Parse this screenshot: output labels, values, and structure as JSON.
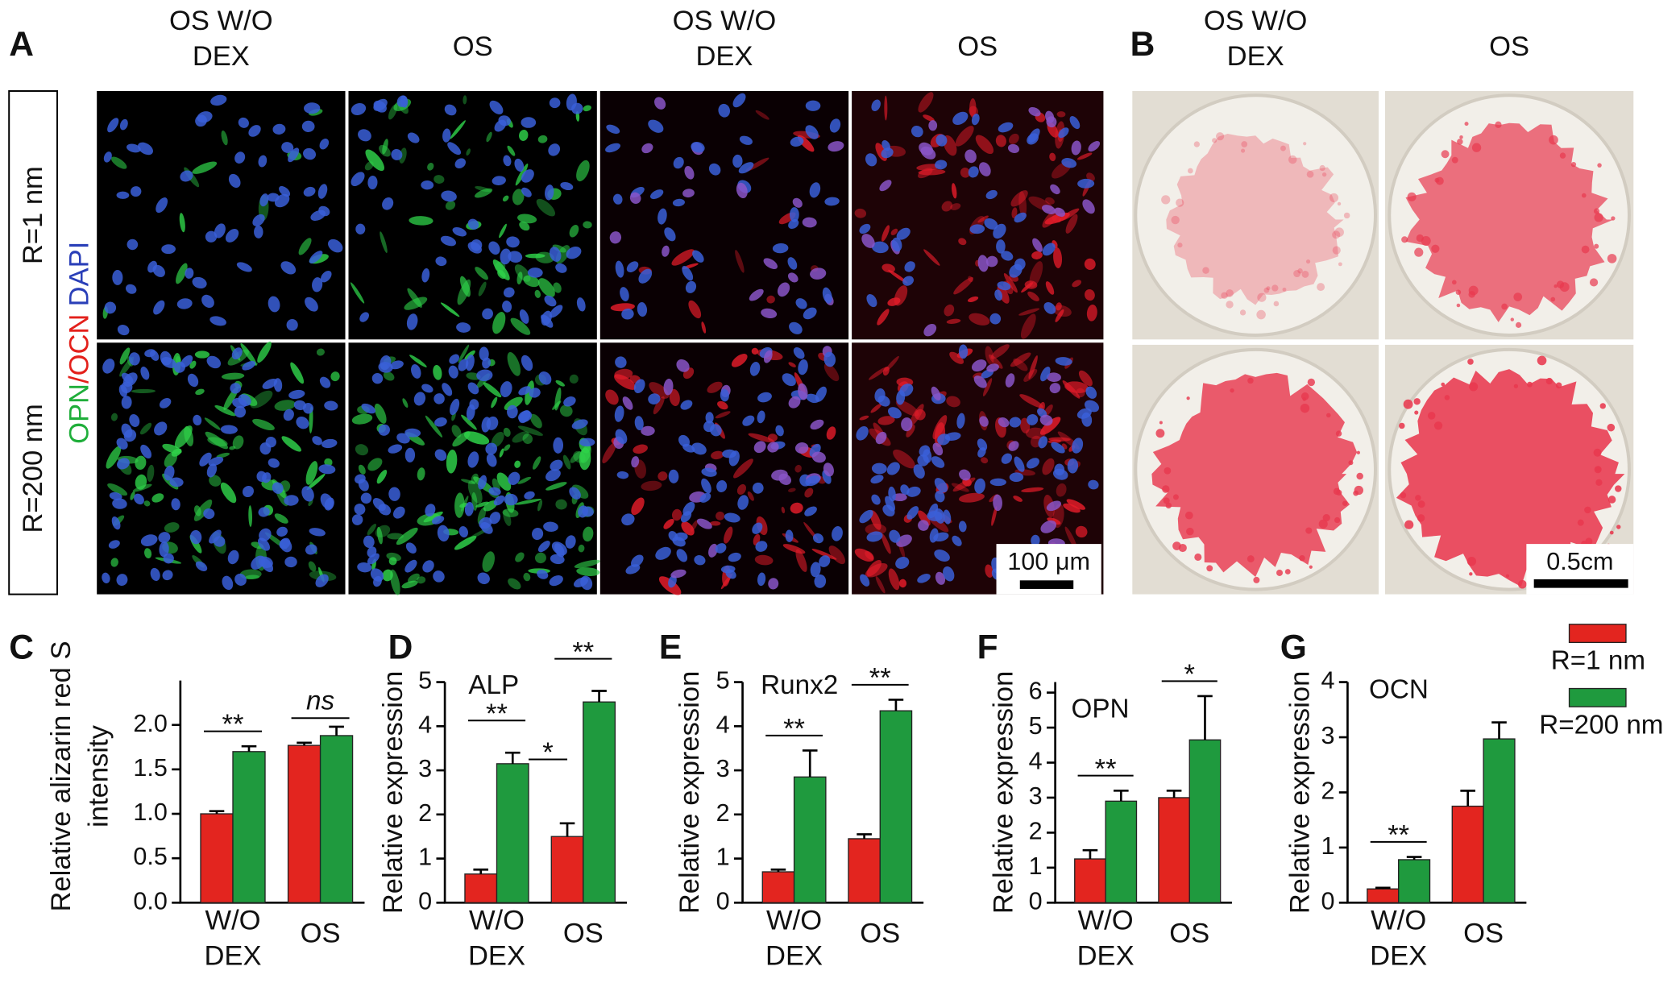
{
  "panel_a": {
    "label": "A",
    "columns": [
      "OS W/O\nDEX",
      "OS",
      "OS W/O\nDEX",
      "OS"
    ],
    "rows": [
      "R=1 nm",
      "R=200 nm"
    ],
    "stain": [
      {
        "text": "OPN",
        "color": "#1fae3a"
      },
      {
        "text": "/OCN",
        "color": "#e3201b"
      },
      {
        "text": "DAPI",
        "color": "#2a3fb8"
      }
    ],
    "scale_bar": "100 μm"
  },
  "panel_b": {
    "label": "B",
    "columns": [
      "OS W/O\nDEX",
      "OS"
    ],
    "scale_bar": "0.5cm"
  },
  "chart_data": [
    {
      "type": "bar",
      "label": "C",
      "ylabel": "Relative alizarin red S\nintensity",
      "categories": [
        "W/O\nDEX",
        "OS"
      ],
      "ylim": [
        0,
        2.5
      ],
      "yticks": [
        {
          "value": 0,
          "label": "0.0"
        },
        {
          "value": 0.5,
          "label": "0.5"
        },
        {
          "value": 1,
          "label": "1.0"
        },
        {
          "value": 1.5,
          "label": "1.5"
        },
        {
          "value": 2,
          "label": "2.0"
        }
      ],
      "series": [
        {
          "color": "#e3251f",
          "values": [
            1.0,
            1.77
          ],
          "errors": [
            0.03,
            0.03
          ]
        },
        {
          "color": "#1f9a3e",
          "values": [
            1.7,
            1.88
          ],
          "errors": [
            0.06,
            0.1
          ]
        }
      ],
      "annotations": [
        "**",
        "ns"
      ]
    },
    {
      "type": "bar",
      "label": "D",
      "title": "ALP",
      "ylabel": "Relative expression",
      "categories": [
        "W/O\nDEX",
        "OS"
      ],
      "ylim": [
        0,
        5
      ],
      "yticks": [
        0,
        1,
        2,
        3,
        4,
        5
      ],
      "series": [
        {
          "color": "#e3251f",
          "values": [
            0.65,
            1.5
          ],
          "errors": [
            0.1,
            0.3
          ]
        },
        {
          "color": "#1f9a3e",
          "values": [
            3.15,
            4.55
          ],
          "errors": [
            0.25,
            0.25
          ]
        }
      ],
      "annotations": [
        "**",
        "**"
      ],
      "cross_annotation": "*"
    },
    {
      "type": "bar",
      "label": "E",
      "title": "Runx2",
      "ylabel": "Relative expression",
      "categories": [
        "W/O\nDEX",
        "OS"
      ],
      "ylim": [
        0,
        5
      ],
      "yticks": [
        0,
        1,
        2,
        3,
        4,
        5
      ],
      "series": [
        {
          "color": "#e3251f",
          "values": [
            0.7,
            1.45
          ],
          "errors": [
            0.05,
            0.1
          ]
        },
        {
          "color": "#1f9a3e",
          "values": [
            2.85,
            4.35
          ],
          "errors": [
            0.6,
            0.25
          ]
        }
      ],
      "annotations": [
        "**",
        "**"
      ]
    },
    {
      "type": "bar",
      "label": "F",
      "title": "OPN",
      "ylabel": "Relative expression",
      "categories": [
        "W/O\nDEX",
        "OS"
      ],
      "ylim": [
        0,
        6.3
      ],
      "yticks": [
        0,
        1,
        2,
        3,
        4,
        5,
        6
      ],
      "series": [
        {
          "color": "#e3251f",
          "values": [
            1.25,
            3.0
          ],
          "errors": [
            0.25,
            0.2
          ]
        },
        {
          "color": "#1f9a3e",
          "values": [
            2.9,
            4.65
          ],
          "errors": [
            0.3,
            1.25
          ]
        }
      ],
      "annotations": [
        "**",
        "*"
      ]
    },
    {
      "type": "bar",
      "label": "G",
      "title": "OCN",
      "ylabel": "Relative expression",
      "categories": [
        "W/O\nDEX",
        "OS"
      ],
      "ylim": [
        0,
        4
      ],
      "yticks": [
        0,
        1,
        2,
        3,
        4
      ],
      "series": [
        {
          "name": "R=1 nm",
          "color": "#e3251f",
          "values": [
            0.25,
            1.75
          ],
          "errors": [
            0.02,
            0.28
          ]
        },
        {
          "name": "R=200 nm",
          "color": "#1f9a3e",
          "values": [
            0.78,
            2.97
          ],
          "errors": [
            0.05,
            0.3
          ]
        }
      ],
      "annotations": [
        "**",
        null
      ]
    }
  ]
}
